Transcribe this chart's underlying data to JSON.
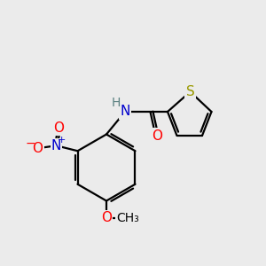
{
  "background_color": "#ebebeb",
  "atom_colors": {
    "C": "#000000",
    "H": "#5a8080",
    "N": "#0000cd",
    "O": "#ff0000",
    "S": "#999900"
  },
  "font_size": 10,
  "bond_lw": 1.6
}
